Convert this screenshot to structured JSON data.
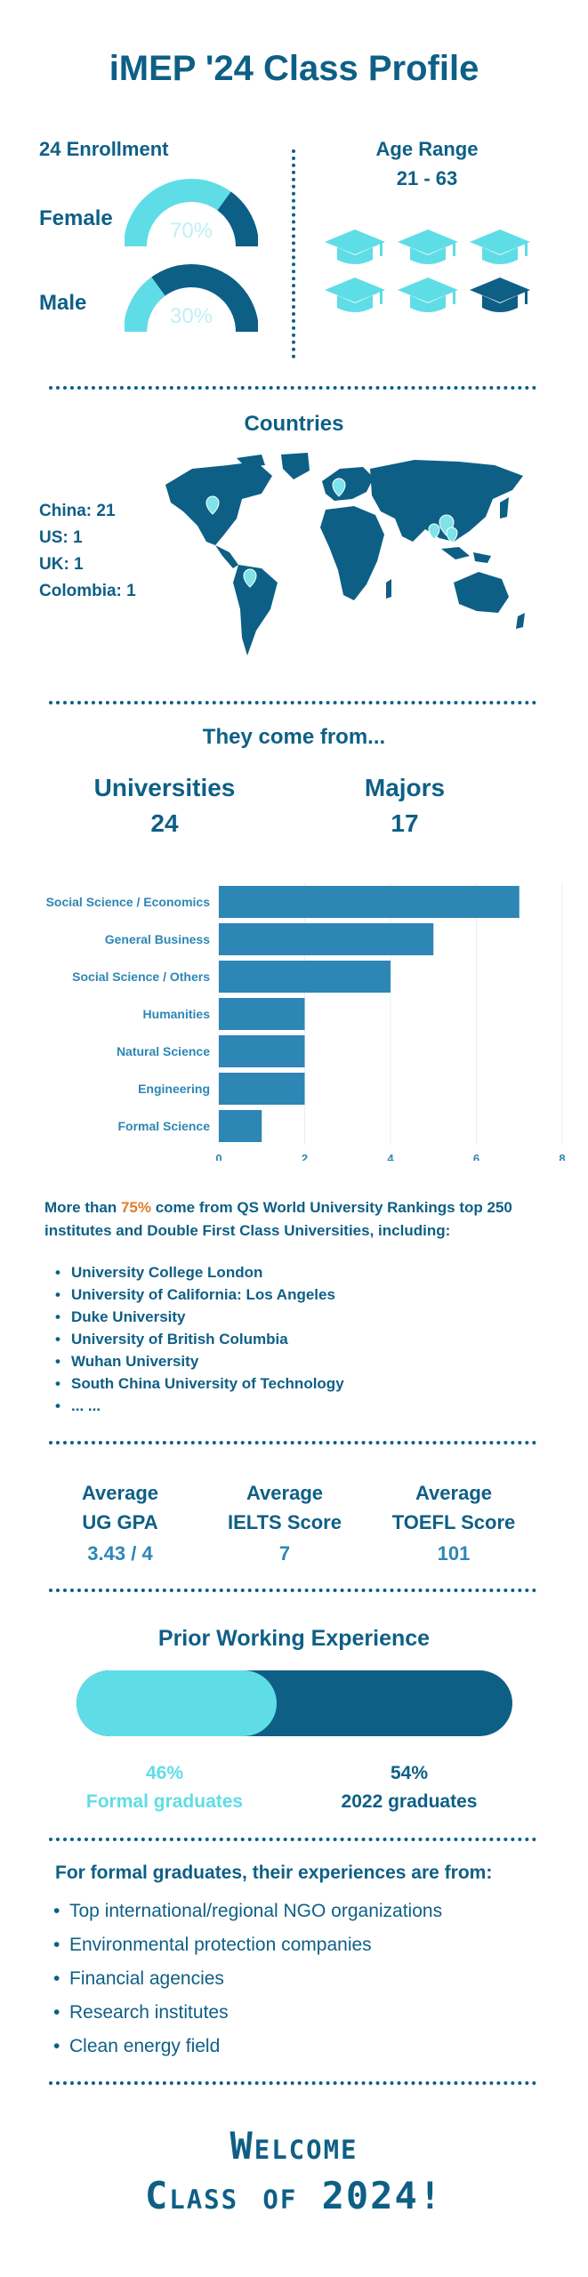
{
  "title": "iMEP '24 Class Profile",
  "enrollment": {
    "heading": "24 Enrollment",
    "female_label": "Female",
    "female_pct": "70%",
    "female_value": 0.7,
    "male_label": "Male",
    "male_pct": "30%",
    "male_value": 0.3
  },
  "age": {
    "heading": "Age Range",
    "range": "21 - 63"
  },
  "countries": {
    "heading": "Countries",
    "lines": [
      "China: 21",
      "US: 1",
      "UK:  1",
      "Colombia: 1"
    ]
  },
  "from": {
    "heading": "They come from...",
    "universities_label": "Universities",
    "universities_value": "24",
    "majors_label": "Majors",
    "majors_value": "17"
  },
  "chart_data": {
    "type": "bar",
    "orientation": "horizontal",
    "categories": [
      "Social Science / Economics",
      "General Business",
      "Social Science / Others",
      "Humanities",
      "Natural Science",
      "Engineering",
      "Formal Science"
    ],
    "values": [
      7,
      5,
      4,
      2,
      2,
      2,
      1
    ],
    "xlim": [
      0,
      8
    ],
    "xticks": [
      "0",
      "2",
      "4",
      "6",
      "8"
    ],
    "bar_color": "#2e86b5"
  },
  "rankings": {
    "prefix": "More than ",
    "highlight": "75%",
    "suffix": " come from QS World University Rankings top 250 institutes and Double First Class Universities, including:",
    "highlight_color": "#e07b2b",
    "universities": [
      "University College London",
      "University of California: Los Angeles",
      "Duke University",
      "University of British Columbia",
      "Wuhan University",
      "South China University of Technology",
      "... ..."
    ]
  },
  "scores": [
    {
      "line1": "Average",
      "line2": "UG GPA",
      "value": "3.43 / 4"
    },
    {
      "line1": "Average",
      "line2": "IELTS Score",
      "value": "7"
    },
    {
      "line1": "Average",
      "line2": "TOEFL Score",
      "value": "101"
    }
  ],
  "experience": {
    "heading": "Prior Working Experience",
    "formal_pct": "46%",
    "formal_label": "Formal graduates",
    "formal_value": 0.46,
    "grad_pct": "54%",
    "grad_label": "2022 graduates"
  },
  "formal_exp": {
    "heading": "For formal graduates, their experiences are from:",
    "items": [
      "Top international/regional NGO organizations",
      "Environmental protection companies",
      "Financial agencies",
      "Research institutes",
      "Clean energy field"
    ]
  },
  "welcome": {
    "line1": "Welcome",
    "line2": "Class of 2024!"
  },
  "colors": {
    "dark": "#0e5f86",
    "light": "#5fdde6",
    "bar": "#2e86b5"
  }
}
